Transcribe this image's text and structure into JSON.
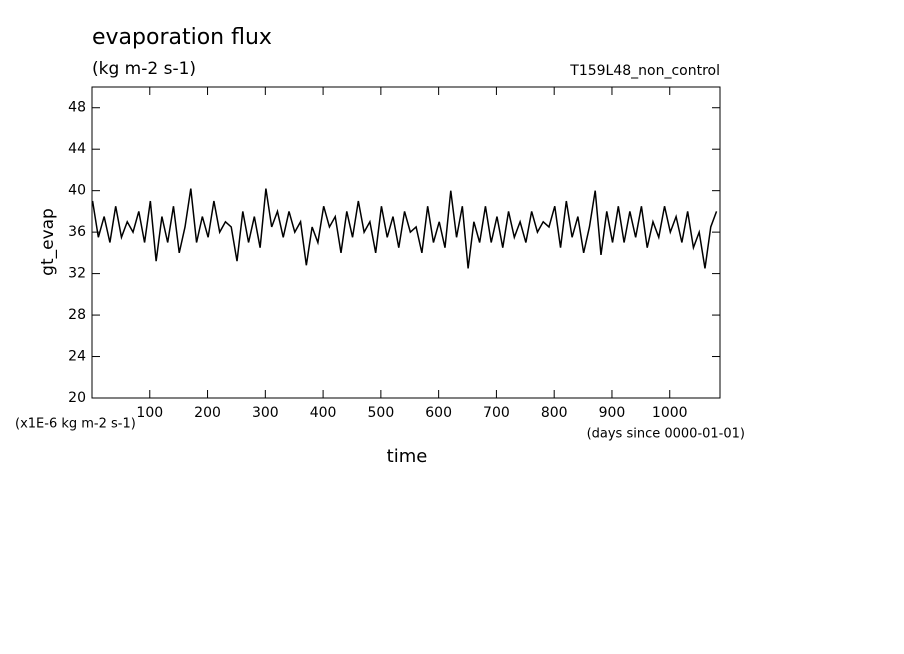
{
  "chart_data": {
    "type": "line",
    "title": "evaporation flux",
    "subtitle": "(kg m-2 s-1)",
    "run_label": "T159L48_non_control",
    "y_label": "gt_evap",
    "y_units": "(x1E-6 kg m-2 s-1)",
    "x_units": "(days since 0000-01-01)",
    "x_label": "time",
    "xlim": [
      0,
      1087
    ],
    "ylim": [
      20,
      50
    ],
    "xticks": [
      100,
      200,
      300,
      400,
      500,
      600,
      700,
      800,
      900,
      1000
    ],
    "yticks": [
      20,
      24,
      28,
      32,
      36,
      40,
      44,
      48
    ],
    "x": [
      1,
      11,
      21,
      31,
      41,
      51,
      61,
      71,
      81,
      91,
      101,
      111,
      121,
      131,
      141,
      151,
      161,
      171,
      181,
      191,
      201,
      211,
      221,
      231,
      241,
      251,
      261,
      271,
      281,
      291,
      301,
      311,
      321,
      331,
      341,
      351,
      361,
      371,
      381,
      391,
      401,
      411,
      421,
      431,
      441,
      451,
      461,
      471,
      481,
      491,
      501,
      511,
      521,
      531,
      541,
      551,
      561,
      571,
      581,
      591,
      601,
      611,
      621,
      631,
      641,
      651,
      661,
      671,
      681,
      691,
      701,
      711,
      721,
      731,
      741,
      751,
      761,
      771,
      781,
      791,
      801,
      811,
      821,
      831,
      841,
      851,
      861,
      871,
      881,
      891,
      901,
      911,
      921,
      931,
      941,
      951,
      961,
      971,
      981,
      991,
      1001,
      1011,
      1021,
      1031,
      1041,
      1051,
      1061,
      1071,
      1081
    ],
    "series": [
      {
        "color": "#000000",
        "values": [
          39.0,
          35.5,
          37.5,
          35.0,
          38.5,
          35.5,
          37.0,
          36.0,
          38.0,
          35.0,
          39.0,
          33.2,
          37.5,
          35.0,
          38.5,
          34.0,
          36.5,
          40.2,
          35.0,
          37.5,
          35.5,
          39.0,
          36.0,
          37.0,
          36.5,
          33.2,
          38.0,
          35.0,
          37.5,
          34.5,
          40.2,
          36.5,
          38.0,
          35.5,
          38.0,
          36.0,
          37.0,
          32.8,
          36.5,
          35.0,
          38.5,
          36.5,
          37.5,
          34.0,
          38.0,
          35.5,
          39.0,
          36.0,
          37.0,
          34.0,
          38.5,
          35.5,
          37.5,
          34.5,
          38.0,
          36.0,
          36.5,
          34.0,
          38.5,
          35.0,
          37.0,
          34.5,
          40.0,
          35.5,
          38.5,
          32.5,
          37.0,
          35.0,
          38.5,
          35.0,
          37.5,
          34.5,
          38.0,
          35.5,
          37.0,
          35.0,
          38.0,
          36.0,
          37.0,
          36.5,
          38.5,
          34.5,
          39.0,
          35.5,
          37.5,
          34.0,
          36.5,
          40.0,
          33.8,
          38.0,
          35.0,
          38.5,
          35.0,
          38.0,
          35.5,
          38.5,
          34.5,
          37.0,
          35.5,
          38.5,
          36.0,
          37.5,
          35.0,
          38.0,
          34.5,
          36.0,
          32.5,
          36.5,
          38.0
        ]
      }
    ]
  }
}
